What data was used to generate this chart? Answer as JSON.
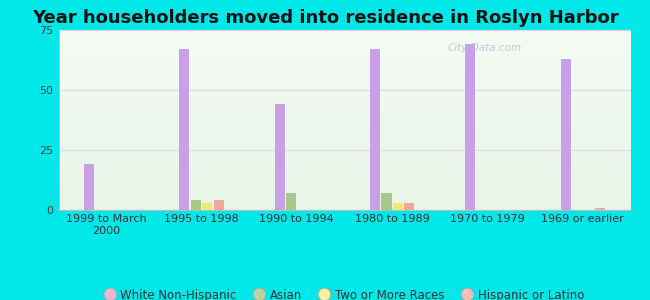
{
  "title": "Year householders moved into residence in Roslyn Harbor",
  "categories": [
    "1999 to March\n2000",
    "1995 to 1998",
    "1990 to 1994",
    "1980 to 1989",
    "1970 to 1979",
    "1969 or earlier"
  ],
  "series": {
    "White Non-Hispanic": [
      19,
      67,
      44,
      67,
      69,
      63
    ],
    "Asian": [
      0,
      4,
      7,
      7,
      0,
      0
    ],
    "Two or More Races": [
      0,
      3,
      0,
      3,
      0,
      0
    ],
    "Hispanic or Latino": [
      0,
      4,
      0,
      3,
      0,
      1
    ]
  },
  "colors": {
    "White Non-Hispanic": "#c8a0e8",
    "Asian": "#a8c888",
    "Two or More Races": "#f0e870",
    "Hispanic or Latino": "#f0a898"
  },
  "legend_colors": {
    "White Non-Hispanic": "#e8b8d8",
    "Asian": "#c0d0a0",
    "Two or More Races": "#f8f0a0",
    "Hispanic or Latino": "#f8c0b8"
  },
  "bar_width": 0.12,
  "ylim": [
    0,
    75
  ],
  "yticks": [
    0,
    25,
    50,
    75
  ],
  "background_color": "#00e8e8",
  "grid_color": "#e8e8e8",
  "title_fontsize": 13,
  "tick_fontsize": 8,
  "legend_fontsize": 8.5
}
